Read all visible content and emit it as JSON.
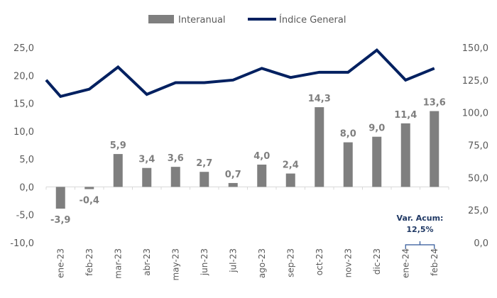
{
  "chart_data": {
    "type": "bar+line",
    "categories": [
      "ene-23",
      "feb-23",
      "mar-23",
      "abr-23",
      "may-23",
      "jun-23",
      "jul-23",
      "ago-23",
      "sep-23",
      "oct-23",
      "nov-23",
      "dic-23",
      "ene-24",
      "feb-24"
    ],
    "series": [
      {
        "name": "Interanual",
        "type": "bar",
        "axis": "left",
        "color": "#7f7f7f",
        "values": [
          -3.9,
          -0.4,
          5.9,
          3.4,
          3.6,
          2.7,
          0.7,
          4.0,
          2.4,
          14.3,
          8.0,
          9.0,
          11.4,
          13.6
        ],
        "labels": [
          "-3,9",
          "-0,4",
          "5,9",
          "3,4",
          "3,6",
          "2,7",
          "0,7",
          "4,0",
          "2,4",
          "14,3",
          "8,0",
          "9,0",
          "11,4",
          "13,6"
        ]
      },
      {
        "name": "Índice General",
        "type": "line",
        "axis": "right",
        "color": "#002060",
        "values": [
          112.4,
          118,
          135,
          114,
          123,
          123,
          125,
          134,
          127,
          131,
          131,
          148,
          125,
          134
        ]
      }
    ],
    "left_axis": {
      "range": [
        -10,
        25
      ],
      "ticks": [
        "-10,0",
        "-5,0",
        "0,0",
        "5,0",
        "10,0",
        "15,0",
        "20,0",
        "25,0"
      ],
      "tick_values": [
        -10,
        -5,
        0,
        5,
        10,
        15,
        20,
        25
      ]
    },
    "right_axis": {
      "range": [
        0,
        150
      ],
      "ticks": [
        "0,0",
        "25,0",
        "50,0",
        "75,0",
        "100,0",
        "125,0",
        "150,0"
      ],
      "tick_values": [
        0,
        25,
        50,
        75,
        100,
        125,
        150
      ]
    },
    "line_lead_in_value": 125,
    "legend": {
      "position": "top",
      "items": [
        "Interanual",
        "Índice General"
      ]
    },
    "annotation": {
      "line1": "Var. Acum:",
      "line2": "12,5%",
      "spans": [
        "ene-24",
        "feb-24"
      ]
    },
    "grid": false
  }
}
